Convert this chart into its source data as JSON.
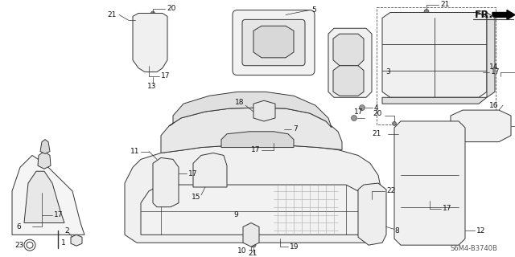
{
  "background_color": "#ffffff",
  "diagram_code": "S6M4-B3740B",
  "fr_label": "FR.",
  "lc": "#333333",
  "lw": 0.7,
  "fig_w": 6.4,
  "fig_h": 3.2,
  "dpi": 100
}
